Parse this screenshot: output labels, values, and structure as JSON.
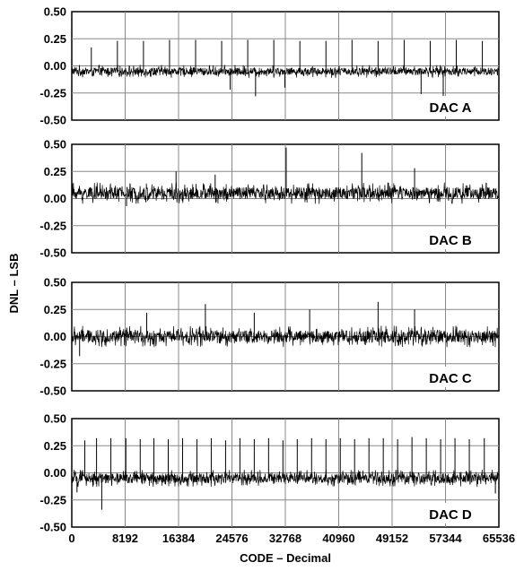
{
  "chart_data": {
    "type": "line",
    "ylabel": "DNL – LSB",
    "xlabel": "CODE – Decimal",
    "xlim": [
      0,
      65536
    ],
    "ylim": [
      -0.5,
      0.5
    ],
    "x_ticks": [
      0,
      8192,
      16384,
      24576,
      32768,
      40960,
      49152,
      57344,
      65536
    ],
    "x_tick_labels": [
      "0",
      "8192",
      "16384",
      "24576",
      "32768",
      "40960",
      "49152",
      "57344",
      "65536"
    ],
    "y_ticks": [
      0.5,
      0.25,
      0.0,
      -0.25,
      -0.5
    ],
    "y_tick_labels": [
      "0.50",
      "0.25",
      "0.00",
      "-0.25",
      "-0.50"
    ],
    "grid": true,
    "series": [
      {
        "name": "DAC A",
        "baseline": -0.05,
        "band": 0.06,
        "upper_spikes": [
          [
            3000,
            0.17
          ],
          [
            7000,
            0.23
          ],
          [
            11000,
            0.23
          ],
          [
            15000,
            0.24
          ],
          [
            19000,
            0.24
          ],
          [
            23000,
            0.23
          ],
          [
            27000,
            0.24
          ],
          [
            31000,
            0.24
          ],
          [
            35000,
            0.23
          ],
          [
            39000,
            0.23
          ],
          [
            43000,
            0.24
          ],
          [
            47000,
            0.23
          ],
          [
            51000,
            0.24
          ],
          [
            55000,
            0.23
          ],
          [
            59000,
            0.24
          ],
          [
            63000,
            0.23
          ]
        ],
        "lower_spikes": [
          [
            24300,
            -0.22
          ],
          [
            28200,
            -0.28
          ],
          [
            32700,
            -0.2
          ],
          [
            53600,
            -0.26
          ],
          [
            57000,
            -0.28
          ]
        ]
      },
      {
        "name": "DAC B",
        "baseline": 0.05,
        "band": 0.1,
        "upper_spikes": [
          [
            16000,
            0.25
          ],
          [
            22000,
            0.22
          ],
          [
            32900,
            0.47
          ],
          [
            44500,
            0.42
          ],
          [
            52600,
            0.28
          ]
        ],
        "lower_spikes": [
          [
            8400,
            -0.07
          ]
        ]
      },
      {
        "name": "DAC C",
        "baseline": 0.0,
        "band": 0.1,
        "upper_spikes": [
          [
            11500,
            0.22
          ],
          [
            20500,
            0.3
          ],
          [
            28000,
            0.22
          ],
          [
            36500,
            0.25
          ],
          [
            47000,
            0.32
          ],
          [
            52600,
            0.25
          ]
        ],
        "lower_spikes": [
          [
            1200,
            -0.18
          ]
        ]
      },
      {
        "name": "DAC D",
        "baseline": -0.05,
        "band": 0.08,
        "upper_spikes": [
          [
            2000,
            0.3
          ],
          [
            3800,
            0.32
          ],
          [
            6000,
            0.32
          ],
          [
            8300,
            0.32
          ],
          [
            10500,
            0.31
          ],
          [
            12600,
            0.32
          ],
          [
            14800,
            0.31
          ],
          [
            17000,
            0.32
          ],
          [
            19200,
            0.31
          ],
          [
            21400,
            0.32
          ],
          [
            23600,
            0.3
          ],
          [
            25800,
            0.32
          ],
          [
            28000,
            0.31
          ],
          [
            30200,
            0.32
          ],
          [
            32400,
            0.3
          ],
          [
            34600,
            0.31
          ],
          [
            36800,
            0.32
          ],
          [
            39000,
            0.31
          ],
          [
            41200,
            0.32
          ],
          [
            43400,
            0.31
          ],
          [
            45600,
            0.32
          ],
          [
            47800,
            0.32
          ],
          [
            50000,
            0.31
          ],
          [
            52200,
            0.33
          ],
          [
            54400,
            0.32
          ],
          [
            56600,
            0.31
          ],
          [
            58800,
            0.32
          ],
          [
            61000,
            0.31
          ],
          [
            63300,
            0.32
          ]
        ],
        "lower_spikes": [
          [
            800,
            -0.18
          ],
          [
            4600,
            -0.34
          ],
          [
            65000,
            -0.19
          ]
        ]
      }
    ]
  }
}
